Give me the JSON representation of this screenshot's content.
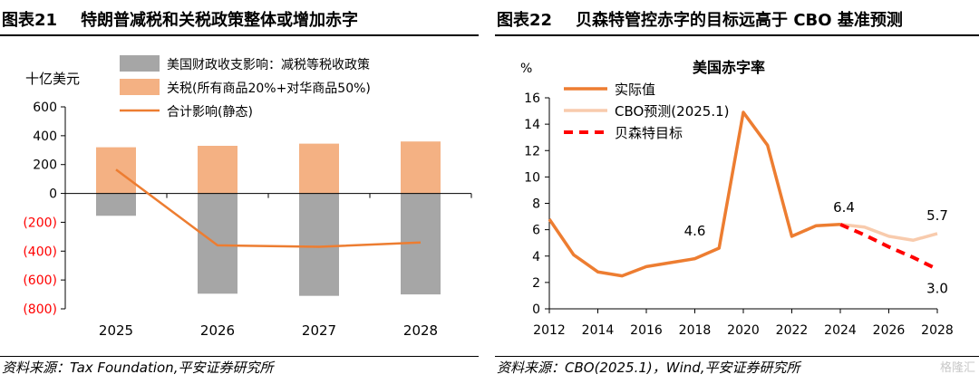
{
  "left": {
    "figure_no": "图表21",
    "title": "特朗普减税和关税政策整体或增加赤字",
    "source": "资料来源：Tax Foundation,平安证券研究所"
  },
  "right": {
    "figure_no": "图表22",
    "title": "贝森特管控赤字的目标远高于 CBO 基准预测",
    "source": "资料来源：CBO(2025.1)，Wind,平安证券研究所"
  },
  "watermark": "格隆汇",
  "chart_data": [
    {
      "type": "bar",
      "title": "",
      "ylabel": "十亿美元",
      "categories": [
        "2025",
        "2026",
        "2027",
        "2028"
      ],
      "ylim": [
        -800,
        600
      ],
      "yticks": [
        600,
        400,
        200,
        0,
        -200,
        -400,
        -600,
        -800
      ],
      "ytick_labels": [
        "600",
        "400",
        "200",
        "0",
        "(200)",
        "(400)",
        "(600)",
        "(800)"
      ],
      "negative_tick_color": "#ff0000",
      "legend_position": "top",
      "series": [
        {
          "name": "美国财政收支影响：减税等税收政策",
          "kind": "bar",
          "color": "#a6a6a6",
          "values": [
            -155,
            -695,
            -710,
            -700
          ]
        },
        {
          "name": "关税(所有商品20%+对华商品50%)",
          "kind": "bar",
          "color": "#f4b183",
          "values": [
            320,
            330,
            345,
            360
          ]
        },
        {
          "name": "合计影响(静态)",
          "kind": "line",
          "color": "#ed7d31",
          "values": [
            165,
            -360,
            -370,
            -340
          ]
        }
      ]
    },
    {
      "type": "line",
      "title": "美国赤字率",
      "ylabel": "%",
      "xlim": [
        2012,
        2028
      ],
      "ylim": [
        0,
        16
      ],
      "xticks": [
        2012,
        2014,
        2016,
        2018,
        2020,
        2022,
        2024,
        2026,
        2028
      ],
      "yticks": [
        0,
        2,
        4,
        6,
        8,
        10,
        12,
        14,
        16
      ],
      "legend_position": "top-left",
      "series": [
        {
          "name": "实际值",
          "color": "#ed7d31",
          "dash": false,
          "x": [
            2012,
            2013,
            2014,
            2015,
            2016,
            2017,
            2018,
            2019,
            2020,
            2021,
            2022,
            2023,
            2024
          ],
          "y": [
            6.8,
            4.1,
            2.8,
            2.5,
            3.2,
            3.5,
            3.8,
            4.6,
            14.9,
            12.4,
            5.5,
            6.3,
            6.4
          ]
        },
        {
          "name": "CBO预测(2025.1)",
          "color": "#f8cbad",
          "dash": false,
          "x": [
            2024,
            2025,
            2026,
            2027,
            2028
          ],
          "y": [
            6.4,
            6.2,
            5.5,
            5.2,
            5.7
          ]
        },
        {
          "name": "贝森特目标",
          "color": "#ff0000",
          "dash": true,
          "x": [
            2024,
            2025,
            2026,
            2027,
            2028
          ],
          "y": [
            6.4,
            5.6,
            4.7,
            3.9,
            3.0
          ]
        }
      ],
      "annotations": [
        {
          "text": "4.6",
          "x": 2018,
          "y": 4.6
        },
        {
          "text": "6.4",
          "x": 2024,
          "y": 6.4
        },
        {
          "text": "5.7",
          "x": 2028,
          "y": 5.7
        },
        {
          "text": "3.0",
          "x": 2028,
          "y": 3.0
        }
      ]
    }
  ]
}
